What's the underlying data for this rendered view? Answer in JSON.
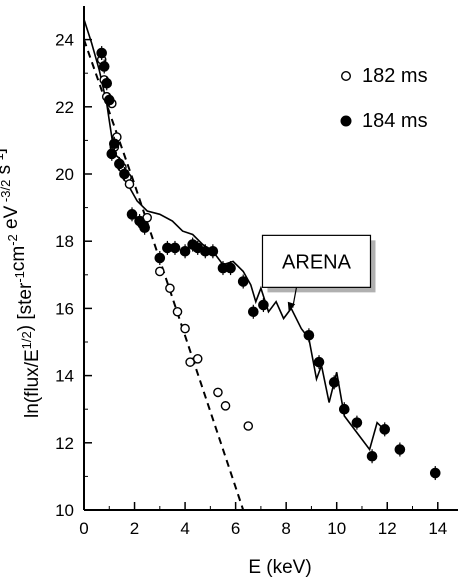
{
  "chart_data": {
    "type": "scatter",
    "xlabel": "E (keV)",
    "ylabel": "ln(flux/E",
    "ylabel_sup": "1/2",
    "ylabel_rest": ") [ster",
    "ylabel_units": [
      {
        "t": "-1",
        "sup": true
      },
      {
        "t": "cm",
        "sup": false
      },
      {
        "t": "-2",
        "sup": true
      },
      {
        "t": " eV",
        "sup": false
      },
      {
        "t": " -3/2",
        "sup": true
      },
      {
        "t": " s",
        "sup": false
      },
      {
        "t": "-1",
        "sup": true
      },
      {
        "t": "]",
        "sup": false
      }
    ],
    "xlim": [
      0,
      14.8
    ],
    "ylim": [
      10,
      25
    ],
    "xticks": [
      0,
      2,
      4,
      6,
      8,
      10,
      12,
      14
    ],
    "yticks": [
      10,
      12,
      14,
      16,
      18,
      20,
      22,
      24
    ],
    "grid": false,
    "legend_position": "top-right",
    "series": [
      {
        "name": "182 ms",
        "marker": "open-circle",
        "points": [
          [
            0.7,
            23.4
          ],
          [
            0.8,
            22.8
          ],
          [
            0.9,
            22.3
          ],
          [
            1.1,
            22.1
          ],
          [
            1.2,
            20.8
          ],
          [
            1.3,
            21.1
          ],
          [
            1.5,
            20.2
          ],
          [
            1.7,
            19.9
          ],
          [
            1.8,
            19.7
          ],
          [
            2.3,
            18.5
          ],
          [
            2.5,
            18.7
          ],
          [
            3.0,
            17.1
          ],
          [
            3.4,
            16.6
          ],
          [
            3.7,
            15.9
          ],
          [
            4.0,
            15.4
          ],
          [
            4.2,
            14.4
          ],
          [
            4.5,
            14.5
          ],
          [
            5.3,
            13.5
          ],
          [
            5.6,
            13.1
          ],
          [
            6.5,
            12.5
          ]
        ]
      },
      {
        "name": "184 ms",
        "marker": "filled-circle",
        "points": [
          [
            0.7,
            23.6
          ],
          [
            0.8,
            23.2
          ],
          [
            0.9,
            22.7
          ],
          [
            1.0,
            22.2
          ],
          [
            1.1,
            20.6
          ],
          [
            1.2,
            20.9
          ],
          [
            1.4,
            20.3
          ],
          [
            1.6,
            20.0
          ],
          [
            1.9,
            18.8
          ],
          [
            2.2,
            18.6
          ],
          [
            2.4,
            18.4
          ],
          [
            3.0,
            17.5
          ],
          [
            3.3,
            17.8
          ],
          [
            3.6,
            17.8
          ],
          [
            4.0,
            17.7
          ],
          [
            4.3,
            17.9
          ],
          [
            4.5,
            17.8
          ],
          [
            4.8,
            17.7
          ],
          [
            5.1,
            17.7
          ],
          [
            5.5,
            17.2
          ],
          [
            5.8,
            17.2
          ],
          [
            6.3,
            16.8
          ],
          [
            6.7,
            15.9
          ],
          [
            7.1,
            16.1
          ],
          [
            8.9,
            15.2
          ],
          [
            9.3,
            14.4
          ],
          [
            9.9,
            13.8
          ],
          [
            10.3,
            13.0
          ],
          [
            10.8,
            12.6
          ],
          [
            11.4,
            11.6
          ],
          [
            11.9,
            12.4
          ],
          [
            12.5,
            11.8
          ],
          [
            13.9,
            11.1
          ]
        ]
      }
    ],
    "fits": [
      {
        "label": "ARENA",
        "style": "solid",
        "points": [
          [
            0,
            24.6
          ],
          [
            0.3,
            23.9
          ],
          [
            0.6,
            23.1
          ],
          [
            0.9,
            22.1
          ],
          [
            1.2,
            20.6
          ],
          [
            1.5,
            20.4
          ],
          [
            1.8,
            19.6
          ],
          [
            2.1,
            19.2
          ],
          [
            2.5,
            18.9
          ],
          [
            3.0,
            18.8
          ],
          [
            3.5,
            18.6
          ],
          [
            3.9,
            18.3
          ],
          [
            4.3,
            18.2
          ],
          [
            4.7,
            17.9
          ],
          [
            5.1,
            17.7
          ],
          [
            5.5,
            17.3
          ],
          [
            5.9,
            17.4
          ],
          [
            6.3,
            17.1
          ],
          [
            6.6,
            16.7
          ],
          [
            6.8,
            16.2
          ],
          [
            7.0,
            16.6
          ],
          [
            7.3,
            15.9
          ],
          [
            7.6,
            16.2
          ],
          [
            7.9,
            15.7
          ],
          [
            8.2,
            16.0
          ],
          [
            8.6,
            15.4
          ],
          [
            8.9,
            15.1
          ],
          [
            9.2,
            13.9
          ],
          [
            9.4,
            14.3
          ],
          [
            9.7,
            13.2
          ],
          [
            10.0,
            14.1
          ],
          [
            10.3,
            12.8
          ],
          [
            10.6,
            12.5
          ],
          [
            11.0,
            12.1
          ],
          [
            11.3,
            11.8
          ],
          [
            11.6,
            12.6
          ],
          [
            12.0,
            12.3
          ]
        ]
      },
      {
        "label": "",
        "style": "dashed",
        "points": [
          [
            0,
            24.0
          ],
          [
            2.0,
            19.7
          ],
          [
            6.3,
            10.0
          ]
        ]
      }
    ],
    "annotation": {
      "text": "ARENA",
      "box_data": [
        9.2,
        17.4
      ],
      "arrow_to": [
        8.1,
        15.9
      ]
    }
  }
}
